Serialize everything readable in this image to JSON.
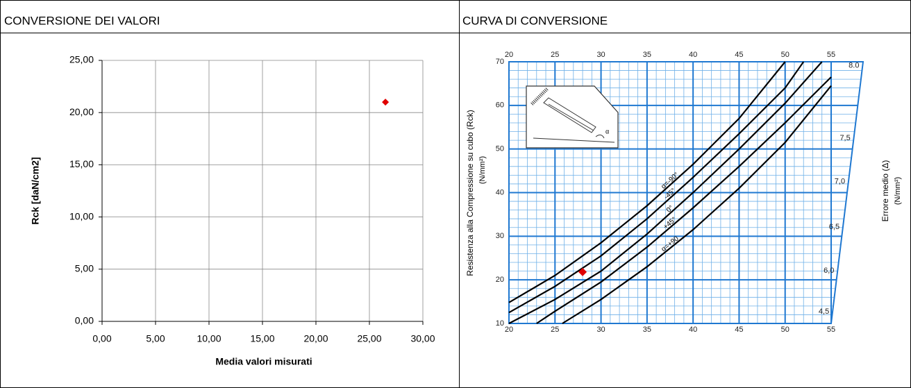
{
  "chart_data": [
    {
      "type": "scatter",
      "panel_title": "CONVERSIONE DEI VALORI",
      "x_label": "Media valori misurati",
      "y_label": "Rck [daN/cm2]",
      "xlim": [
        0,
        30
      ],
      "ylim": [
        0,
        25
      ],
      "grid": true,
      "xticks": [
        {
          "value": 0,
          "label": "0,00"
        },
        {
          "value": 5,
          "label": "5,00"
        },
        {
          "value": 10,
          "label": "10,00"
        },
        {
          "value": 15,
          "label": "15,00"
        },
        {
          "value": 20,
          "label": "20,00"
        },
        {
          "value": 25,
          "label": "25,00"
        },
        {
          "value": 30,
          "label": "30,00"
        }
      ],
      "yticks": [
        {
          "value": 0,
          "label": "0,00"
        },
        {
          "value": 5,
          "label": "5,00"
        },
        {
          "value": 10,
          "label": "10,00"
        },
        {
          "value": 15,
          "label": "15,00"
        },
        {
          "value": 20,
          "label": "20,00"
        },
        {
          "value": 25,
          "label": "25,00"
        }
      ],
      "series": [
        {
          "color": "#e00000",
          "x": [
            26.5
          ],
          "values": [
            21.0
          ]
        }
      ]
    },
    {
      "type": "line",
      "panel_title": "CURVA DI CONVERSIONE",
      "y_label": "Resistenza alla Compressione su cubo (Rck)",
      "y_unit": "(N/mm²)",
      "y2_label": "Errore medio (Δ)",
      "y2_unit": "(N/mm²)",
      "xlim": [
        20,
        55
      ],
      "ylim": [
        10,
        70
      ],
      "grid": true,
      "xticks": [
        20,
        25,
        30,
        35,
        40,
        45,
        50,
        55
      ],
      "yticks": [
        10,
        20,
        30,
        40,
        50,
        60,
        70
      ],
      "y2ticks": [
        {
          "value": 4.5,
          "label": "4,5",
          "rck": 11.6
        },
        {
          "value": 6.0,
          "label": "6,0",
          "rck": 21
        },
        {
          "value": 6.5,
          "label": "6,5",
          "rck": 31
        },
        {
          "value": 7.0,
          "label": "7,0",
          "rck": 41.4
        },
        {
          "value": 7.5,
          "label": "7,5",
          "rck": 51.4
        },
        {
          "value": 8.0,
          "label": "8.0",
          "rck": 68
        }
      ],
      "series": [
        {
          "name": "α=-90°",
          "color": "#000000",
          "x": [
            20,
            25,
            30,
            35,
            40,
            45,
            50
          ],
          "values": [
            14.8,
            21,
            28.5,
            37,
            46.5,
            57,
            70
          ]
        },
        {
          "name": "-45°",
          "color": "#000000",
          "x": [
            20,
            25,
            30,
            35,
            40,
            45,
            50,
            52
          ],
          "values": [
            12.5,
            18.5,
            25.5,
            34,
            43.5,
            53.5,
            64,
            70
          ]
        },
        {
          "name": "0°",
          "color": "#000000",
          "x": [
            20,
            25,
            30,
            35,
            40,
            45,
            50,
            54
          ],
          "values": [
            10,
            15.5,
            22,
            30.5,
            40,
            50,
            60.5,
            70
          ]
        },
        {
          "name": "+45°",
          "color": "#000000",
          "x": [
            23,
            25,
            30,
            35,
            40,
            45,
            50,
            55
          ],
          "values": [
            10,
            12.8,
            19.5,
            27.5,
            36.5,
            46,
            56,
            66.5
          ]
        },
        {
          "name": "α=+90",
          "color": "#000000",
          "x": [
            25.8,
            30,
            35,
            40,
            45,
            50,
            55
          ],
          "values": [
            10,
            15.5,
            23,
            31.5,
            41,
            51.5,
            64.5
          ]
        }
      ],
      "point": {
        "x": 28,
        "y": 21.8,
        "color": "#e00000"
      }
    }
  ]
}
